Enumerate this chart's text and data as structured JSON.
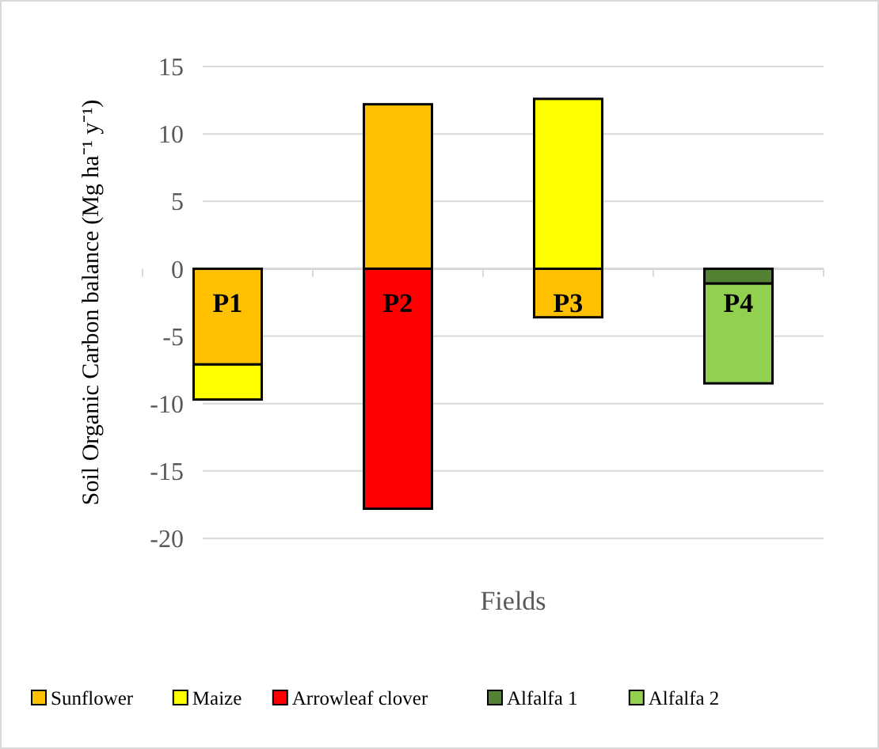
{
  "chart_data": {
    "type": "bar",
    "stacked": true,
    "xlabel": "Fields",
    "ylabel": "Soil Organic Carbon balance (Mg ha⁻¹ y⁻¹)",
    "categories": [
      "P1",
      "P2",
      "P3",
      "P4"
    ],
    "series": [
      {
        "name": "Sunflower",
        "color": "#ffc000",
        "values": [
          -7.1,
          12.2,
          -3.6,
          null
        ]
      },
      {
        "name": "Maize",
        "color": "#ffff00",
        "values": [
          -2.6,
          null,
          12.6,
          null
        ]
      },
      {
        "name": "Arrowleaf clover",
        "color": "#ff0000",
        "values": [
          null,
          -17.8,
          null,
          null
        ]
      },
      {
        "name": "Alfalfa 1",
        "color": "#548235",
        "values": [
          null,
          null,
          null,
          -1.1
        ]
      },
      {
        "name": "Alfalfa 2",
        "color": "#92d050",
        "values": [
          null,
          null,
          null,
          -7.4
        ]
      }
    ],
    "ylim": [
      -20,
      15
    ],
    "yticks": [
      -20,
      -15,
      -10,
      -5,
      0,
      5,
      10,
      15
    ],
    "grid": "y",
    "legend": "bottom"
  }
}
